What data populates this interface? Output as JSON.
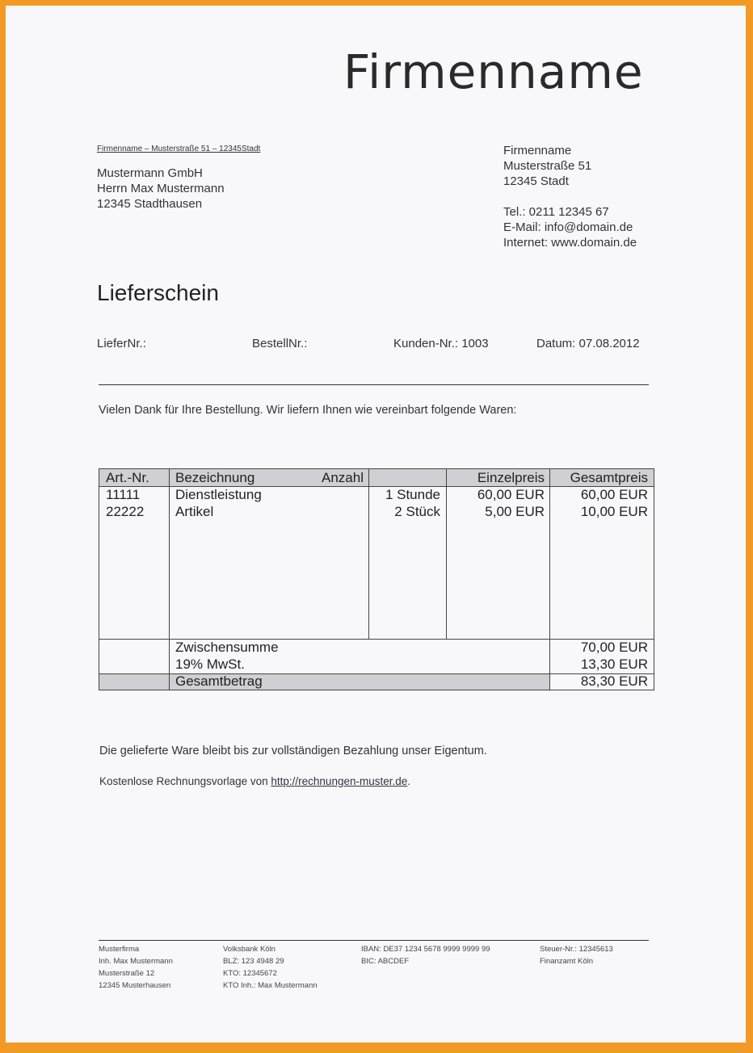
{
  "company": {
    "title": "Firmenname",
    "sender_line": "Firmenname – Musterstraße 51 – 12345Stadt",
    "address": [
      "Firmenname",
      "Musterstraße 51",
      "12345 Stadt"
    ],
    "contact": [
      "Tel.: 0211 12345 67",
      "E-Mail: info@domain.de",
      "Internet: www.domain.de"
    ]
  },
  "recipient": [
    "Mustermann GmbH",
    "Herrn Max Mustermann",
    "12345 Stadthausen"
  ],
  "doc_title": "Lieferschein",
  "meta": {
    "liefer": "LieferNr.:",
    "bestell": "BestellNr.:",
    "kunden": "Kunden-Nr.: 1003",
    "datum": "Datum: 07.08.2012"
  },
  "intro": "Vielen Dank für Ihre Bestellung. Wir liefern Ihnen wie vereinbart folgende Waren:",
  "table": {
    "headers": [
      "Art.-Nr.",
      "Bezeichnung",
      "Anzahl",
      "Einzelpreis",
      "Gesamtpreis"
    ],
    "rows": [
      [
        "11111",
        "Dienstleistung",
        "1 Stunde",
        "60,00 EUR",
        "60,00 EUR"
      ],
      [
        "22222",
        "Artikel",
        "2 Stück",
        "5,00 EUR",
        "10,00 EUR"
      ]
    ],
    "subtotal_label": "Zwischensumme",
    "subtotal": "70,00 EUR",
    "tax_label": "19% MwSt.",
    "tax": "13,30 EUR",
    "total_label": "Gesamtbetrag",
    "total": "83,30 EUR"
  },
  "note": "Die gelieferte Ware bleibt bis zur vollständigen Bezahlung unser Eigentum.",
  "template_text": "Kostenlose Rechnungsvorlage von ",
  "template_link": "http://rechnungen-muster.de",
  "template_end": ".",
  "footer": [
    [
      "Musterfirma",
      "Inh. Max Mustermann",
      "Musterstraße 12",
      "12345 Musterhausen"
    ],
    [
      "Volksbank Köln",
      "BLZ: 123 4948 29",
      "KTO: 12345672",
      "KTO Inh.: Max Mustermann"
    ],
    [
      "IBAN: DE37 1234 5678 9999 9999 99",
      "BIC: ABCDEF"
    ],
    [
      "Steuer-Nr.: 12345613",
      "Finanzamt Köln"
    ]
  ],
  "colors": {
    "border": "#f39a26",
    "header_fill": "#cfcfd4"
  }
}
